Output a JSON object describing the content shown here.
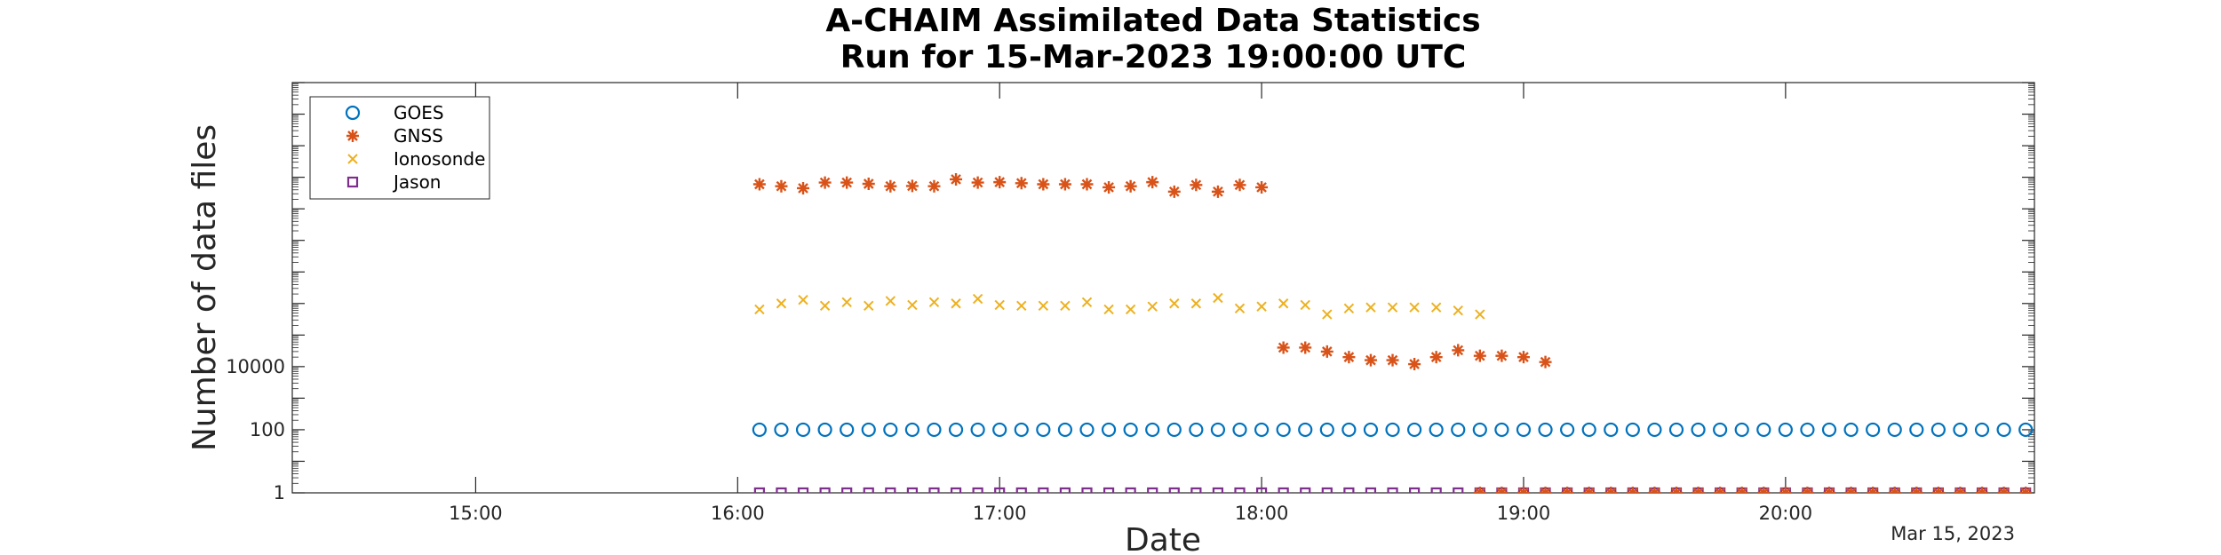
{
  "chart_data": {
    "type": "scatter",
    "title": "A-CHAIM Assimilated Data Statistics",
    "subtitle": "Run for 15-Mar-2023 19:00:00 UTC",
    "xlabel": "Date",
    "ylabel": "Number of data files",
    "date_label": "Mar 15, 2023",
    "x_unit": "hours UTC",
    "xlim": [
      14.3,
      20.95
    ],
    "ylim": [
      1,
      10000000000000
    ],
    "y_scale": "log",
    "x_ticks": [
      15,
      16,
      17,
      18,
      19,
      20
    ],
    "x_tick_labels": [
      "15:00",
      "16:00",
      "17:00",
      "18:00",
      "19:00",
      "20:00"
    ],
    "y_ticks": [
      1,
      100,
      10000
    ],
    "y_tick_labels": [
      "1",
      "100",
      "10000"
    ],
    "grid": false,
    "legend_position": "top-left",
    "series": [
      {
        "name": "GOES",
        "marker": "circle",
        "color": "#0072BD",
        "start": "16:05",
        "interval_min": 5,
        "values": [
          100,
          100,
          100,
          100,
          100,
          100,
          100,
          100,
          100,
          100,
          100,
          100,
          100,
          100,
          100,
          100,
          100,
          100,
          100,
          100,
          100,
          100,
          100,
          100,
          100,
          100,
          100,
          100,
          100,
          100,
          100,
          100,
          100,
          100,
          100,
          100,
          100,
          100,
          100,
          100,
          100,
          100,
          100,
          100,
          100,
          100,
          100,
          100,
          100,
          100,
          100,
          100,
          100,
          100,
          100,
          100,
          100,
          100,
          100,
          100
        ]
      },
      {
        "name": "GNSS",
        "marker": "asterisk",
        "color": "#D95319",
        "start": "16:05",
        "interval_min": 5,
        "values": [
          6000000000,
          5200000000,
          4500000000,
          6800000000,
          6800000000,
          6200000000,
          5200000000,
          5300000000,
          5200000000,
          8600000000,
          6800000000,
          7000000000,
          6500000000,
          6000000000,
          6000000000,
          6000000000,
          4800000000,
          5200000000,
          7000000000,
          3500000000,
          5700000000,
          3500000000,
          5700000000,
          4800000000,
          40000,
          40000,
          30000,
          20000,
          16000,
          16000,
          12000,
          20000,
          33000,
          22000,
          22000,
          20000,
          14000
        ]
      },
      {
        "name": "Ionosonde",
        "marker": "x",
        "color": "#EDB120",
        "start": "16:05",
        "interval_min": 5,
        "values": [
          650000,
          1000000,
          1300000,
          850000,
          1100000,
          850000,
          1200000,
          900000,
          1100000,
          1000000,
          1400000,
          900000,
          850000,
          850000,
          850000,
          1100000,
          650000,
          650000,
          800000,
          1000000,
          1000000,
          1500000,
          700000,
          800000,
          1000000,
          900000,
          450000,
          700000,
          750000,
          750000,
          750000,
          750000,
          600000,
          450000
        ]
      },
      {
        "name": "Jason",
        "marker": "square",
        "color": "#7E2F8E",
        "start": "16:05",
        "interval_min": 5,
        "values": [
          1,
          1,
          1,
          1,
          1,
          1,
          1,
          1,
          1,
          1,
          1,
          1,
          1,
          1,
          1,
          1,
          1,
          1,
          1,
          1,
          1,
          1,
          1,
          1,
          1,
          1,
          1,
          1,
          1,
          1,
          1,
          1,
          1,
          1,
          1,
          1,
          1,
          1,
          1,
          1,
          1,
          1,
          1,
          1,
          1,
          1,
          1,
          1,
          1,
          1,
          1,
          1,
          1,
          1,
          1,
          1,
          1,
          1,
          1,
          1
        ]
      },
      {
        "name": "",
        "marker": "asterisk",
        "color": "#D95319",
        "start": "18:50",
        "interval_min": 5,
        "values": [
          1,
          1,
          1,
          1,
          1,
          1,
          1,
          1,
          1,
          1,
          1,
          1,
          1,
          1,
          1,
          1,
          1,
          1,
          1,
          1,
          1,
          1,
          1,
          1,
          1,
          1
        ]
      }
    ]
  }
}
